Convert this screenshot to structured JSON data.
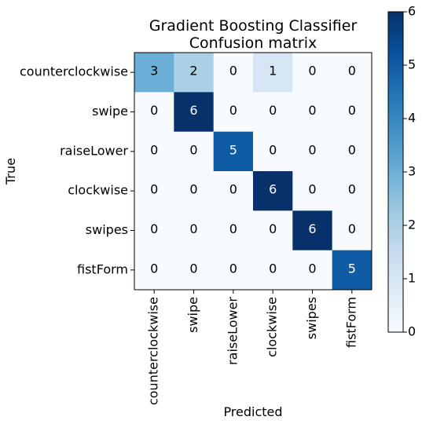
{
  "chart_data": {
    "type": "heatmap",
    "title_line1": "Gradient Boosting Classifier",
    "title_line2": "Confusion matrix",
    "xlabel": "Predicted",
    "ylabel": "True",
    "row_labels": [
      "counterclockwise",
      "swipe",
      "raiseLower",
      "clockwise",
      "swipes",
      "fistForm"
    ],
    "col_labels": [
      "counterclockwise",
      "swipe",
      "raiseLower",
      "clockwise",
      "swipes",
      "fistForm"
    ],
    "matrix": [
      [
        3,
        2,
        0,
        1,
        0,
        0
      ],
      [
        0,
        6,
        0,
        0,
        0,
        0
      ],
      [
        0,
        0,
        5,
        0,
        0,
        0
      ],
      [
        0,
        0,
        0,
        6,
        0,
        0
      ],
      [
        0,
        0,
        0,
        0,
        6,
        0
      ],
      [
        0,
        0,
        0,
        0,
        0,
        5
      ]
    ],
    "colormap": "Blues",
    "color_range": [
      0,
      6
    ],
    "colorbar_ticks": [
      "0",
      "1",
      "2",
      "3",
      "4",
      "5",
      "6"
    ],
    "grid": false,
    "legend": "colorbar-right"
  }
}
